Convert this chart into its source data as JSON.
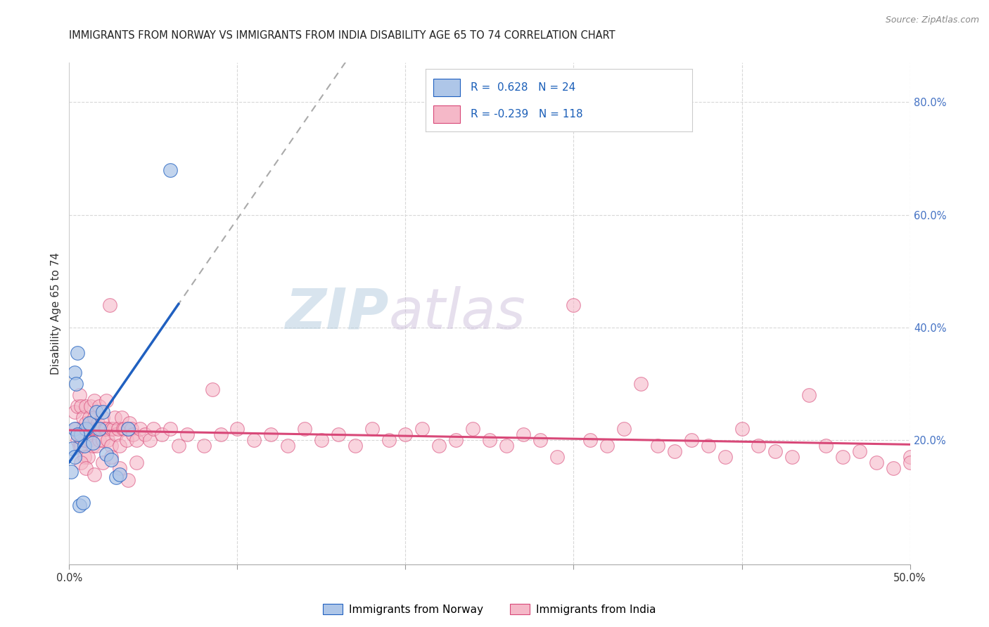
{
  "title": "IMMIGRANTS FROM NORWAY VS IMMIGRANTS FROM INDIA DISABILITY AGE 65 TO 74 CORRELATION CHART",
  "source": "Source: ZipAtlas.com",
  "ylabel": "Disability Age 65 to 74",
  "xlim": [
    0.0,
    0.5
  ],
  "ylim": [
    -0.02,
    0.87
  ],
  "legend_norway": "Immigrants from Norway",
  "legend_india": "Immigrants from India",
  "R_norway": 0.628,
  "N_norway": 24,
  "R_india": -0.239,
  "N_india": 118,
  "norway_color": "#aec6e8",
  "norway_line_color": "#2060c0",
  "india_color": "#f5b8c8",
  "india_line_color": "#d84878",
  "watermark_zip": "ZIP",
  "watermark_atlas": "atlas",
  "background_color": "#ffffff",
  "grid_color": "#d8d8d8",
  "norway_x": [
    0.001,
    0.002,
    0.003,
    0.003,
    0.004,
    0.005,
    0.006,
    0.007,
    0.008,
    0.009,
    0.01,
    0.012,
    0.014,
    0.016,
    0.018,
    0.02,
    0.022,
    0.025,
    0.028,
    0.03,
    0.035,
    0.06,
    0.003,
    0.005
  ],
  "norway_y": [
    0.145,
    0.185,
    0.22,
    0.32,
    0.3,
    0.355,
    0.085,
    0.21,
    0.09,
    0.19,
    0.22,
    0.23,
    0.195,
    0.25,
    0.22,
    0.25,
    0.175,
    0.165,
    0.135,
    0.14,
    0.22,
    0.68,
    0.17,
    0.21
  ],
  "india_x": [
    0.003,
    0.004,
    0.005,
    0.005,
    0.006,
    0.006,
    0.006,
    0.007,
    0.007,
    0.008,
    0.008,
    0.009,
    0.009,
    0.01,
    0.01,
    0.01,
    0.011,
    0.011,
    0.012,
    0.012,
    0.013,
    0.013,
    0.014,
    0.014,
    0.015,
    0.015,
    0.015,
    0.016,
    0.016,
    0.017,
    0.017,
    0.018,
    0.018,
    0.019,
    0.02,
    0.02,
    0.021,
    0.022,
    0.022,
    0.023,
    0.024,
    0.025,
    0.025,
    0.026,
    0.027,
    0.028,
    0.029,
    0.03,
    0.031,
    0.032,
    0.033,
    0.034,
    0.035,
    0.036,
    0.037,
    0.038,
    0.04,
    0.042,
    0.045,
    0.048,
    0.05,
    0.055,
    0.06,
    0.065,
    0.07,
    0.08,
    0.085,
    0.09,
    0.1,
    0.11,
    0.12,
    0.13,
    0.14,
    0.15,
    0.16,
    0.17,
    0.18,
    0.19,
    0.2,
    0.21,
    0.22,
    0.23,
    0.24,
    0.25,
    0.26,
    0.27,
    0.28,
    0.29,
    0.3,
    0.31,
    0.32,
    0.33,
    0.34,
    0.35,
    0.36,
    0.37,
    0.38,
    0.39,
    0.4,
    0.41,
    0.42,
    0.43,
    0.44,
    0.45,
    0.46,
    0.47,
    0.48,
    0.49,
    0.5,
    0.5,
    0.007,
    0.01,
    0.015,
    0.02,
    0.025,
    0.03,
    0.035,
    0.04
  ],
  "india_y": [
    0.25,
    0.22,
    0.2,
    0.26,
    0.28,
    0.21,
    0.19,
    0.26,
    0.19,
    0.22,
    0.24,
    0.2,
    0.17,
    0.26,
    0.23,
    0.2,
    0.22,
    0.17,
    0.24,
    0.2,
    0.22,
    0.26,
    0.19,
    0.22,
    0.24,
    0.22,
    0.27,
    0.22,
    0.19,
    0.23,
    0.22,
    0.26,
    0.2,
    0.22,
    0.24,
    0.2,
    0.22,
    0.27,
    0.22,
    0.2,
    0.44,
    0.22,
    0.19,
    0.22,
    0.24,
    0.21,
    0.22,
    0.19,
    0.24,
    0.22,
    0.22,
    0.2,
    0.22,
    0.23,
    0.22,
    0.21,
    0.2,
    0.22,
    0.21,
    0.2,
    0.22,
    0.21,
    0.22,
    0.19,
    0.21,
    0.19,
    0.29,
    0.21,
    0.22,
    0.2,
    0.21,
    0.19,
    0.22,
    0.2,
    0.21,
    0.19,
    0.22,
    0.2,
    0.21,
    0.22,
    0.19,
    0.2,
    0.22,
    0.2,
    0.19,
    0.21,
    0.2,
    0.17,
    0.44,
    0.2,
    0.19,
    0.22,
    0.3,
    0.19,
    0.18,
    0.2,
    0.19,
    0.17,
    0.22,
    0.19,
    0.18,
    0.17,
    0.28,
    0.19,
    0.17,
    0.18,
    0.16,
    0.15,
    0.17,
    0.16,
    0.16,
    0.15,
    0.14,
    0.16,
    0.17,
    0.15,
    0.13,
    0.16
  ],
  "norway_trend": [
    0.14,
    9.0
  ],
  "india_trend_start": 0.235,
  "india_trend_end": 0.155
}
